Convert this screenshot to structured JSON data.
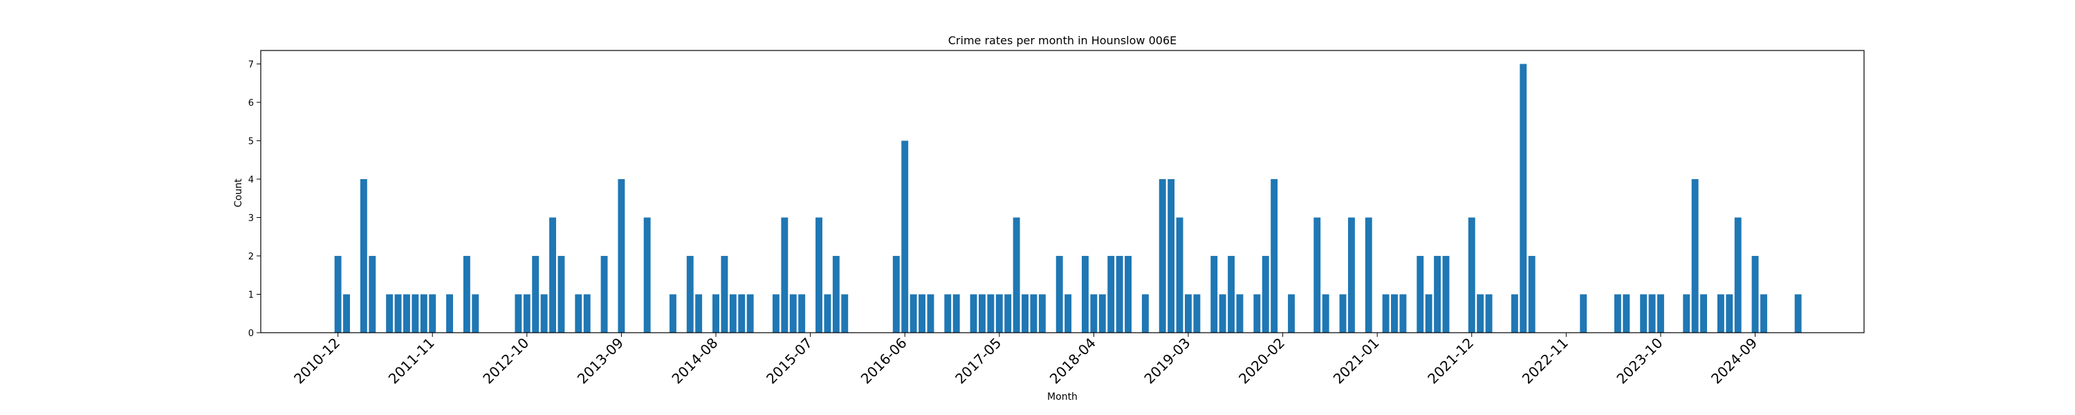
{
  "chart_data": {
    "type": "bar",
    "title": "Crime rates per month in Hounslow 006E",
    "xlabel": "Month",
    "ylabel": "Count",
    "ylim": [
      0,
      7.35
    ],
    "yticks": [
      0,
      1,
      2,
      3,
      4,
      5,
      6,
      7
    ],
    "xtick_labels": [
      "2010-12",
      "2011-11",
      "2012-10",
      "2013-09",
      "2014-08",
      "2015-07",
      "2016-06",
      "2017-05",
      "2018-04",
      "2019-03",
      "2020-02",
      "2021-01",
      "2021-12",
      "2022-11",
      "2023-10",
      "2024-09"
    ],
    "start_month": "2010-12",
    "bar_color": "#1f77b4",
    "categories": [
      "2010-12",
      "2011-01",
      "2011-02",
      "2011-03",
      "2011-04",
      "2011-05",
      "2011-06",
      "2011-07",
      "2011-08",
      "2011-09",
      "2011-10",
      "2011-11",
      "2011-12",
      "2012-01",
      "2012-02",
      "2012-03",
      "2012-04",
      "2012-05",
      "2012-06",
      "2012-07",
      "2012-08",
      "2012-09",
      "2012-10",
      "2012-11",
      "2012-12",
      "2013-01",
      "2013-02",
      "2013-03",
      "2013-04",
      "2013-05",
      "2013-06",
      "2013-07",
      "2013-08",
      "2013-09",
      "2013-10",
      "2013-11",
      "2013-12",
      "2014-01",
      "2014-02",
      "2014-03",
      "2014-04",
      "2014-05",
      "2014-06",
      "2014-07",
      "2014-08",
      "2014-09",
      "2014-10",
      "2014-11",
      "2014-12",
      "2015-01",
      "2015-02",
      "2015-03",
      "2015-04",
      "2015-05",
      "2015-06",
      "2015-07",
      "2015-08",
      "2015-09",
      "2015-10",
      "2015-11",
      "2015-12",
      "2016-01",
      "2016-02",
      "2016-03",
      "2016-04",
      "2016-05",
      "2016-06",
      "2016-07",
      "2016-08",
      "2016-09",
      "2016-10",
      "2016-11",
      "2016-12",
      "2017-01",
      "2017-02",
      "2017-03",
      "2017-04",
      "2017-05",
      "2017-06",
      "2017-07",
      "2017-08",
      "2017-09",
      "2017-10",
      "2017-11",
      "2017-12",
      "2018-01",
      "2018-02",
      "2018-03",
      "2018-04",
      "2018-05",
      "2018-06",
      "2018-07",
      "2018-08",
      "2018-09",
      "2018-10",
      "2018-11",
      "2018-12",
      "2019-01",
      "2019-02",
      "2019-03",
      "2019-04",
      "2019-05",
      "2019-06",
      "2019-07",
      "2019-08",
      "2019-09",
      "2019-10",
      "2019-11",
      "2019-12",
      "2020-01",
      "2020-02",
      "2020-03",
      "2020-04",
      "2020-05",
      "2020-06",
      "2020-07",
      "2020-08",
      "2020-09",
      "2020-10",
      "2020-11",
      "2020-12",
      "2021-01",
      "2021-02",
      "2021-03",
      "2021-04",
      "2021-05",
      "2021-06",
      "2021-07",
      "2021-08",
      "2021-09",
      "2021-10",
      "2021-11",
      "2021-12",
      "2022-01",
      "2022-02",
      "2022-03",
      "2022-04",
      "2022-05",
      "2022-06",
      "2022-07",
      "2022-08",
      "2022-09",
      "2022-10",
      "2022-11",
      "2022-12",
      "2023-01",
      "2023-02",
      "2023-03",
      "2023-04",
      "2023-05",
      "2023-06",
      "2023-07",
      "2023-08",
      "2023-09",
      "2023-10",
      "2023-11",
      "2023-12",
      "2024-01",
      "2024-02",
      "2024-03",
      "2024-04",
      "2024-05",
      "2024-06",
      "2024-07",
      "2024-08",
      "2024-09",
      "2024-10",
      "2024-11",
      "2024-12",
      "2025-01",
      "2025-02"
    ],
    "values": [
      2,
      1,
      0,
      4,
      2,
      0,
      1,
      1,
      1,
      1,
      1,
      1,
      0,
      1,
      0,
      2,
      1,
      0,
      0,
      0,
      0,
      1,
      1,
      2,
      1,
      3,
      2,
      0,
      1,
      1,
      0,
      2,
      0,
      4,
      0,
      0,
      3,
      0,
      0,
      1,
      0,
      2,
      1,
      0,
      1,
      2,
      1,
      1,
      1,
      0,
      0,
      1,
      3,
      1,
      1,
      0,
      3,
      1,
      2,
      1,
      0,
      0,
      0,
      0,
      0,
      2,
      5,
      1,
      1,
      1,
      0,
      1,
      1,
      0,
      1,
      1,
      1,
      1,
      1,
      3,
      1,
      1,
      1,
      0,
      2,
      1,
      0,
      2,
      1,
      1,
      2,
      2,
      2,
      0,
      1,
      0,
      4,
      4,
      3,
      1,
      1,
      0,
      2,
      1,
      2,
      1,
      0,
      1,
      2,
      4,
      0,
      1,
      0,
      0,
      3,
      1,
      0,
      1,
      3,
      0,
      3,
      0,
      1,
      1,
      1,
      0,
      2,
      1,
      2,
      2,
      0,
      0,
      3,
      1,
      1,
      0,
      0,
      1,
      7,
      2,
      0,
      0,
      0,
      0,
      0,
      1,
      0,
      0,
      0,
      1,
      1,
      0,
      1,
      1,
      1,
      0,
      0,
      1,
      4,
      1,
      0,
      1,
      1,
      3,
      0,
      2,
      1,
      0,
      0,
      0,
      1
    ]
  }
}
